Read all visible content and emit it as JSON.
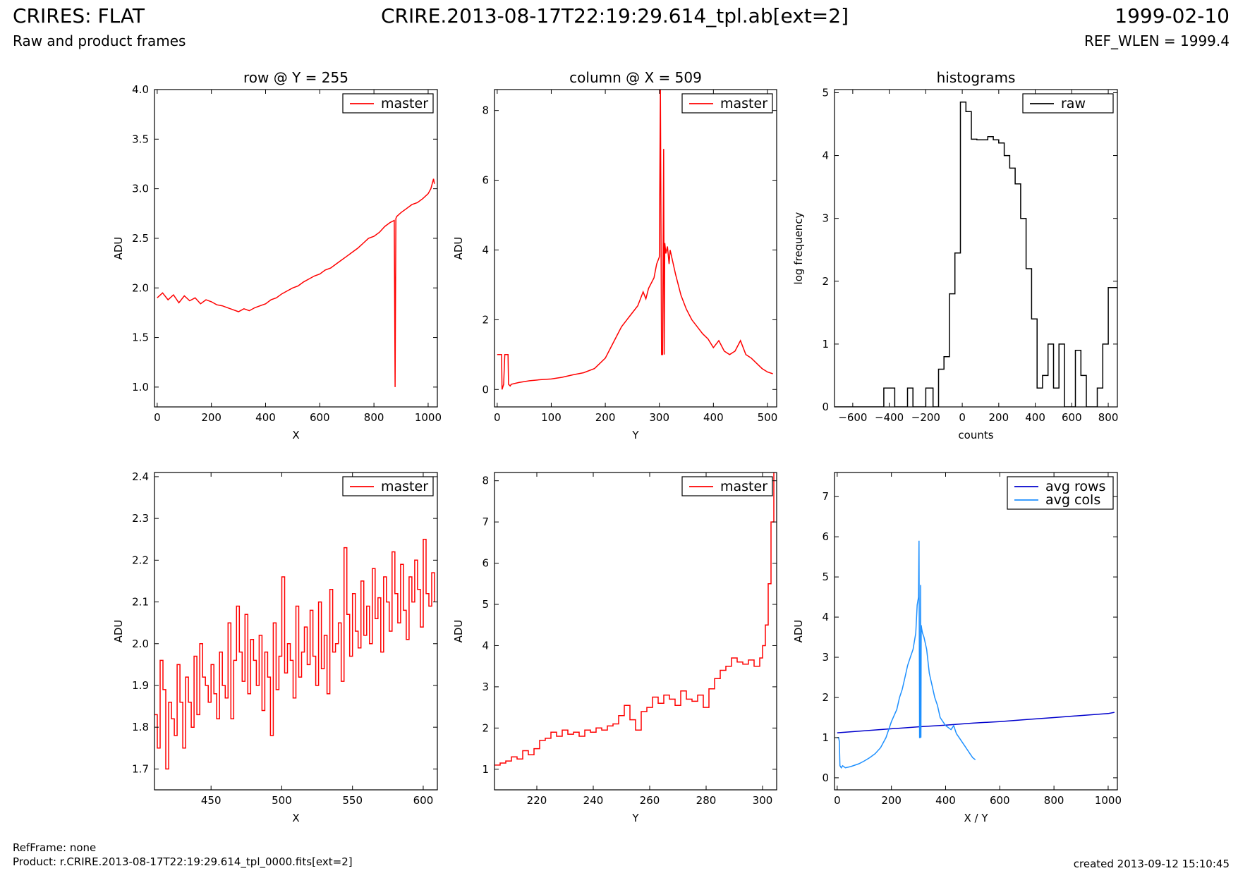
{
  "header": {
    "title": "CRIRES: FLAT",
    "subtitle": "Raw and product frames",
    "file": "CRIRE.2013-08-17T22:19:29.614_tpl.ab[ext=2]",
    "date": "1999-02-10",
    "ref_wlen": "REF_WLEN = 1999.4"
  },
  "footer": {
    "refframe": "RefFrame: none",
    "product": "Product: r.CRIRE.2013-08-17T22:19:29.614_tpl_0000.fits[ext=2]",
    "created": "created 2013-09-12 15:10:45"
  },
  "colors": {
    "red": "#ff0000",
    "blue": "#0000cc",
    "lightblue": "#1e90ff",
    "black": "#000000"
  },
  "chart_data": [
    {
      "type": "line",
      "title": "row @ Y = 255",
      "xlabel": "X",
      "ylabel": "ADU",
      "xlim": [
        -10,
        1034
      ],
      "ylim": [
        0.8,
        4.0
      ],
      "xticks": [
        0,
        200,
        400,
        600,
        800,
        1000
      ],
      "yticks": [
        1.0,
        1.5,
        2.0,
        2.5,
        3.0,
        3.5,
        4.0
      ],
      "ytick_labels": [
        "1.0",
        "1.5",
        "2.0",
        "2.5",
        "3.0",
        "3.5",
        "4.0"
      ],
      "legend": {
        "position": "top-right",
        "entries": [
          {
            "name": "master",
            "color": "#ff0000"
          }
        ]
      },
      "series": [
        {
          "name": "master",
          "color": "#ff0000",
          "x": [
            0,
            20,
            40,
            60,
            80,
            100,
            120,
            140,
            160,
            180,
            200,
            220,
            240,
            260,
            280,
            300,
            320,
            340,
            360,
            380,
            400,
            420,
            440,
            460,
            480,
            500,
            520,
            540,
            560,
            580,
            600,
            620,
            640,
            660,
            680,
            700,
            720,
            740,
            760,
            780,
            800,
            820,
            840,
            860,
            875,
            878,
            881,
            884,
            900,
            920,
            940,
            960,
            980,
            1000,
            1010,
            1020,
            1023
          ],
          "y": [
            1.9,
            1.95,
            1.88,
            1.93,
            1.85,
            1.92,
            1.87,
            1.9,
            1.84,
            1.88,
            1.86,
            1.83,
            1.82,
            1.8,
            1.78,
            1.76,
            1.79,
            1.77,
            1.8,
            1.82,
            1.84,
            1.88,
            1.9,
            1.94,
            1.97,
            2.0,
            2.02,
            2.06,
            2.09,
            2.12,
            2.14,
            2.18,
            2.2,
            2.24,
            2.28,
            2.32,
            2.36,
            2.4,
            2.45,
            2.5,
            2.52,
            2.56,
            2.62,
            2.66,
            2.68,
            1.0,
            2.7,
            2.72,
            2.76,
            2.8,
            2.84,
            2.86,
            2.9,
            2.95,
            3.0,
            3.1,
            3.05
          ]
        }
      ]
    },
    {
      "type": "line",
      "title": "column @ X = 509",
      "xlabel": "Y",
      "ylabel": "ADU",
      "xlim": [
        -5,
        517
      ],
      "ylim": [
        -0.5,
        8.6
      ],
      "xticks": [
        0,
        100,
        200,
        300,
        400,
        500
      ],
      "yticks": [
        0,
        2,
        4,
        6,
        8
      ],
      "ytick_labels": [
        "0",
        "2",
        "4",
        "6",
        "8"
      ],
      "legend": {
        "position": "top-right",
        "entries": [
          {
            "name": "master",
            "color": "#ff0000"
          }
        ]
      },
      "series": [
        {
          "name": "master",
          "color": "#ff0000",
          "x": [
            0,
            8,
            9,
            12,
            14,
            20,
            21,
            24,
            26,
            40,
            60,
            80,
            100,
            120,
            140,
            160,
            180,
            200,
            210,
            220,
            230,
            240,
            250,
            260,
            270,
            275,
            280,
            290,
            295,
            300,
            302,
            304,
            306,
            308,
            309,
            310,
            312,
            315,
            318,
            320,
            330,
            340,
            350,
            360,
            370,
            380,
            390,
            400,
            410,
            420,
            430,
            440,
            450,
            460,
            470,
            480,
            490,
            500,
            510
          ],
          "y": [
            1.0,
            1.0,
            0.0,
            0.15,
            1.0,
            1.0,
            0.15,
            0.1,
            0.15,
            0.2,
            0.25,
            0.28,
            0.3,
            0.35,
            0.42,
            0.48,
            0.6,
            0.9,
            1.2,
            1.5,
            1.8,
            2.0,
            2.2,
            2.4,
            2.8,
            2.6,
            2.9,
            3.2,
            3.6,
            3.8,
            8.6,
            1.0,
            1.0,
            6.9,
            1.0,
            4.2,
            3.9,
            4.1,
            3.6,
            4.0,
            3.3,
            2.7,
            2.3,
            2.0,
            1.8,
            1.6,
            1.45,
            1.2,
            1.4,
            1.1,
            1.0,
            1.1,
            1.4,
            1.0,
            0.9,
            0.75,
            0.6,
            0.5,
            0.45
          ]
        }
      ]
    },
    {
      "type": "line",
      "title": "histograms",
      "xlabel": "counts",
      "ylabel": "log frequency",
      "xlim": [
        -700,
        850
      ],
      "ylim": [
        0,
        5.05
      ],
      "xticks": [
        -600,
        -400,
        -200,
        0,
        200,
        400,
        600,
        800
      ],
      "xtick_labels": [
        "−600",
        "−400",
        "−200",
        "0",
        "200",
        "400",
        "600",
        "800"
      ],
      "yticks": [
        0,
        1,
        2,
        3,
        4,
        5
      ],
      "ytick_labels": [
        "0",
        "1",
        "2",
        "3",
        "4",
        "5"
      ],
      "legend": {
        "position": "top-right",
        "entries": [
          {
            "name": "raw",
            "color": "#000000"
          }
        ]
      },
      "series": [
        {
          "name": "raw",
          "color": "#000000",
          "step": true,
          "x": [
            -700,
            -430,
            -400,
            -370,
            -330,
            -300,
            -270,
            -230,
            -200,
            -160,
            -130,
            -100,
            -70,
            -40,
            -10,
            20,
            50,
            80,
            110,
            140,
            170,
            200,
            230,
            260,
            290,
            320,
            350,
            380,
            410,
            440,
            470,
            500,
            530,
            560,
            590,
            620,
            650,
            680,
            710,
            740,
            770,
            800,
            830,
            850
          ],
          "y": [
            0,
            0.3,
            0.3,
            0,
            0,
            0.3,
            0,
            0,
            0.3,
            0,
            0.6,
            0.8,
            1.8,
            2.45,
            4.85,
            4.7,
            4.26,
            4.25,
            4.25,
            4.3,
            4.25,
            4.2,
            4.0,
            3.8,
            3.55,
            3.0,
            2.2,
            1.4,
            0.3,
            0.5,
            1.0,
            0.3,
            1.0,
            0,
            0,
            0.9,
            0.5,
            0,
            0,
            0.3,
            1.0,
            1.9,
            1.9,
            1.9
          ]
        }
      ]
    },
    {
      "type": "line",
      "title": "",
      "xlabel": "X",
      "ylabel": "ADU",
      "xlim": [
        410,
        610
      ],
      "ylim": [
        1.65,
        2.41
      ],
      "xticks": [
        450,
        500,
        550,
        600
      ],
      "yticks": [
        1.7,
        1.8,
        1.9,
        2.0,
        2.1,
        2.2,
        2.3,
        2.4
      ],
      "ytick_labels": [
        "1.7",
        "1.8",
        "1.9",
        "2.0",
        "2.1",
        "2.2",
        "2.3",
        "2.4"
      ],
      "legend": {
        "position": "top-right",
        "entries": [
          {
            "name": "master",
            "color": "#ff0000"
          }
        ]
      },
      "series": [
        {
          "name": "master",
          "color": "#ff0000",
          "step": true,
          "x": [
            410,
            412,
            414,
            416,
            418,
            420,
            422,
            424,
            426,
            428,
            430,
            432,
            434,
            436,
            438,
            440,
            442,
            444,
            446,
            448,
            450,
            452,
            454,
            456,
            458,
            460,
            462,
            464,
            466,
            468,
            470,
            472,
            474,
            476,
            478,
            480,
            482,
            484,
            486,
            488,
            490,
            492,
            494,
            496,
            498,
            500,
            502,
            504,
            506,
            508,
            510,
            512,
            514,
            516,
            518,
            520,
            522,
            524,
            526,
            528,
            530,
            532,
            534,
            536,
            538,
            540,
            542,
            544,
            546,
            548,
            550,
            552,
            554,
            556,
            558,
            560,
            562,
            564,
            566,
            568,
            570,
            572,
            574,
            576,
            578,
            580,
            582,
            584,
            586,
            588,
            590,
            592,
            594,
            596,
            598,
            600,
            602,
            604,
            606,
            608
          ],
          "y": [
            1.83,
            1.75,
            1.96,
            1.89,
            1.7,
            1.86,
            1.82,
            1.78,
            1.95,
            1.86,
            1.75,
            1.92,
            1.86,
            1.8,
            1.97,
            1.83,
            2.0,
            1.92,
            1.9,
            1.86,
            1.95,
            1.88,
            1.82,
            1.98,
            1.9,
            1.87,
            2.05,
            1.82,
            1.96,
            2.09,
            1.98,
            1.91,
            2.07,
            1.88,
            2.01,
            1.96,
            1.9,
            2.02,
            1.84,
            1.98,
            1.92,
            1.78,
            2.05,
            1.89,
            1.97,
            2.16,
            1.93,
            2.0,
            1.96,
            1.87,
            2.09,
            1.92,
            1.98,
            2.04,
            1.95,
            2.08,
            1.97,
            1.9,
            2.1,
            1.94,
            2.02,
            1.88,
            2.13,
            1.98,
            2.0,
            2.05,
            1.91,
            2.23,
            2.07,
            1.97,
            2.12,
            2.03,
            1.99,
            2.15,
            2.02,
            2.09,
            2.0,
            2.18,
            2.06,
            2.11,
            1.98,
            2.16,
            2.1,
            2.03,
            2.22,
            2.12,
            2.05,
            2.19,
            2.08,
            2.01,
            2.16,
            2.1,
            2.2,
            2.13,
            2.04,
            2.25,
            2.12,
            2.09,
            2.17,
            2.1
          ]
        }
      ]
    },
    {
      "type": "line",
      "title": "",
      "xlabel": "Y",
      "ylabel": "ADU",
      "xlim": [
        205,
        305
      ],
      "ylim": [
        0.5,
        8.2
      ],
      "xticks": [
        220,
        240,
        260,
        280,
        300
      ],
      "yticks": [
        1,
        2,
        3,
        4,
        5,
        6,
        7,
        8
      ],
      "ytick_labels": [
        "1",
        "2",
        "3",
        "4",
        "5",
        "6",
        "7",
        "8"
      ],
      "legend": {
        "position": "top-right",
        "entries": [
          {
            "name": "master",
            "color": "#ff0000"
          }
        ]
      },
      "series": [
        {
          "name": "master",
          "color": "#ff0000",
          "step": true,
          "x": [
            205,
            207,
            209,
            211,
            213,
            215,
            217,
            219,
            221,
            223,
            225,
            227,
            229,
            231,
            233,
            235,
            237,
            239,
            241,
            243,
            245,
            247,
            249,
            251,
            253,
            255,
            257,
            259,
            261,
            263,
            265,
            267,
            269,
            271,
            273,
            275,
            277,
            279,
            281,
            283,
            285,
            287,
            289,
            291,
            293,
            295,
            297,
            299,
            300,
            301,
            302,
            303,
            304
          ],
          "y": [
            1.1,
            1.15,
            1.2,
            1.3,
            1.25,
            1.45,
            1.35,
            1.5,
            1.7,
            1.75,
            1.9,
            1.8,
            1.95,
            1.85,
            1.9,
            1.8,
            1.95,
            1.9,
            2.0,
            1.95,
            2.05,
            2.1,
            2.3,
            2.55,
            2.2,
            1.95,
            2.4,
            2.5,
            2.75,
            2.6,
            2.8,
            2.7,
            2.55,
            2.9,
            2.7,
            2.65,
            2.8,
            2.5,
            2.95,
            3.2,
            3.4,
            3.5,
            3.7,
            3.6,
            3.55,
            3.65,
            3.5,
            3.7,
            4.0,
            4.5,
            5.5,
            7.0,
            8.2
          ]
        }
      ]
    },
    {
      "type": "line",
      "title": "",
      "xlabel": "X / Y",
      "ylabel": "ADU",
      "xlim": [
        -10,
        1034
      ],
      "ylim": [
        -0.3,
        7.6
      ],
      "xticks": [
        0,
        200,
        400,
        600,
        800,
        1000
      ],
      "yticks": [
        0,
        1,
        2,
        3,
        4,
        5,
        6,
        7
      ],
      "ytick_labels": [
        "0",
        "1",
        "2",
        "3",
        "4",
        "5",
        "6",
        "7"
      ],
      "legend": {
        "position": "top-right",
        "entries": [
          {
            "name": "avg rows",
            "color": "#0000cc"
          },
          {
            "name": "avg cols",
            "color": "#1e90ff"
          }
        ]
      },
      "series": [
        {
          "name": "avg rows",
          "color": "#0000cc",
          "x": [
            0,
            100,
            200,
            300,
            400,
            500,
            600,
            700,
            800,
            900,
            1000,
            1023
          ],
          "y": [
            1.12,
            1.17,
            1.22,
            1.27,
            1.31,
            1.36,
            1.4,
            1.45,
            1.5,
            1.55,
            1.6,
            1.63
          ]
        },
        {
          "name": "avg cols",
          "color": "#1e90ff",
          "x": [
            0,
            5,
            8,
            10,
            15,
            20,
            30,
            50,
            80,
            100,
            120,
            140,
            160,
            180,
            190,
            200,
            210,
            220,
            230,
            240,
            250,
            260,
            270,
            280,
            290,
            295,
            300,
            302,
            304,
            306,
            308,
            309,
            310,
            312,
            315,
            320,
            330,
            340,
            350,
            360,
            370,
            380,
            390,
            400,
            410,
            420,
            430,
            440,
            450,
            460,
            470,
            480,
            490,
            500,
            510
          ],
          "y": [
            1.0,
            1.0,
            0.9,
            0.3,
            0.25,
            0.3,
            0.25,
            0.28,
            0.35,
            0.42,
            0.5,
            0.6,
            0.75,
            1.0,
            1.2,
            1.4,
            1.55,
            1.7,
            2.0,
            2.2,
            2.5,
            2.8,
            3.0,
            3.2,
            3.6,
            4.3,
            4.5,
            5.9,
            1.0,
            1.0,
            4.8,
            1.0,
            3.8,
            3.7,
            3.6,
            3.5,
            3.2,
            2.6,
            2.3,
            2.0,
            1.8,
            1.5,
            1.4,
            1.3,
            1.25,
            1.2,
            1.3,
            1.1,
            1.0,
            0.9,
            0.8,
            0.7,
            0.6,
            0.5,
            0.45
          ]
        }
      ]
    }
  ]
}
